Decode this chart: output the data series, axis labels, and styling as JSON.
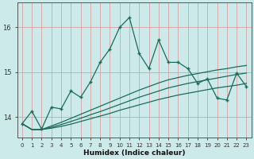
{
  "xlabel": "Humidex (Indice chaleur)",
  "background_color": "#cceaea",
  "grid_color": "#d9a0a0",
  "line_color": "#1a6b5a",
  "x": [
    0,
    1,
    2,
    3,
    4,
    5,
    6,
    7,
    8,
    9,
    10,
    11,
    12,
    13,
    14,
    15,
    16,
    17,
    18,
    19,
    20,
    21,
    22,
    23
  ],
  "y_main": [
    13.85,
    14.13,
    13.73,
    14.22,
    14.18,
    14.58,
    14.44,
    14.78,
    15.22,
    15.52,
    16.0,
    16.22,
    15.42,
    15.08,
    15.72,
    15.22,
    15.22,
    15.08,
    14.75,
    14.85,
    14.42,
    14.38,
    14.98,
    14.68
  ],
  "y_line1": [
    13.85,
    13.72,
    13.72,
    13.75,
    13.79,
    13.84,
    13.9,
    13.96,
    14.02,
    14.08,
    14.15,
    14.21,
    14.27,
    14.33,
    14.39,
    14.44,
    14.49,
    14.53,
    14.57,
    14.61,
    14.65,
    14.68,
    14.71,
    14.75
  ],
  "y_line2": [
    13.85,
    13.72,
    13.72,
    13.77,
    13.83,
    13.9,
    13.97,
    14.05,
    14.12,
    14.2,
    14.28,
    14.36,
    14.44,
    14.51,
    14.58,
    14.65,
    14.7,
    14.75,
    14.79,
    14.83,
    14.87,
    14.91,
    14.95,
    14.98
  ],
  "y_line3": [
    13.85,
    13.72,
    13.72,
    13.8,
    13.88,
    13.97,
    14.06,
    14.15,
    14.24,
    14.33,
    14.42,
    14.51,
    14.6,
    14.68,
    14.76,
    14.83,
    14.88,
    14.93,
    14.97,
    15.01,
    15.05,
    15.08,
    15.12,
    15.15
  ],
  "yticks": [
    14,
    15,
    16
  ],
  "xticks": [
    0,
    1,
    2,
    3,
    4,
    5,
    6,
    7,
    8,
    9,
    10,
    11,
    12,
    13,
    14,
    15,
    16,
    17,
    18,
    19,
    20,
    21,
    22,
    23
  ],
  "ylim": [
    13.55,
    16.55
  ],
  "xlim": [
    -0.5,
    23.5
  ]
}
